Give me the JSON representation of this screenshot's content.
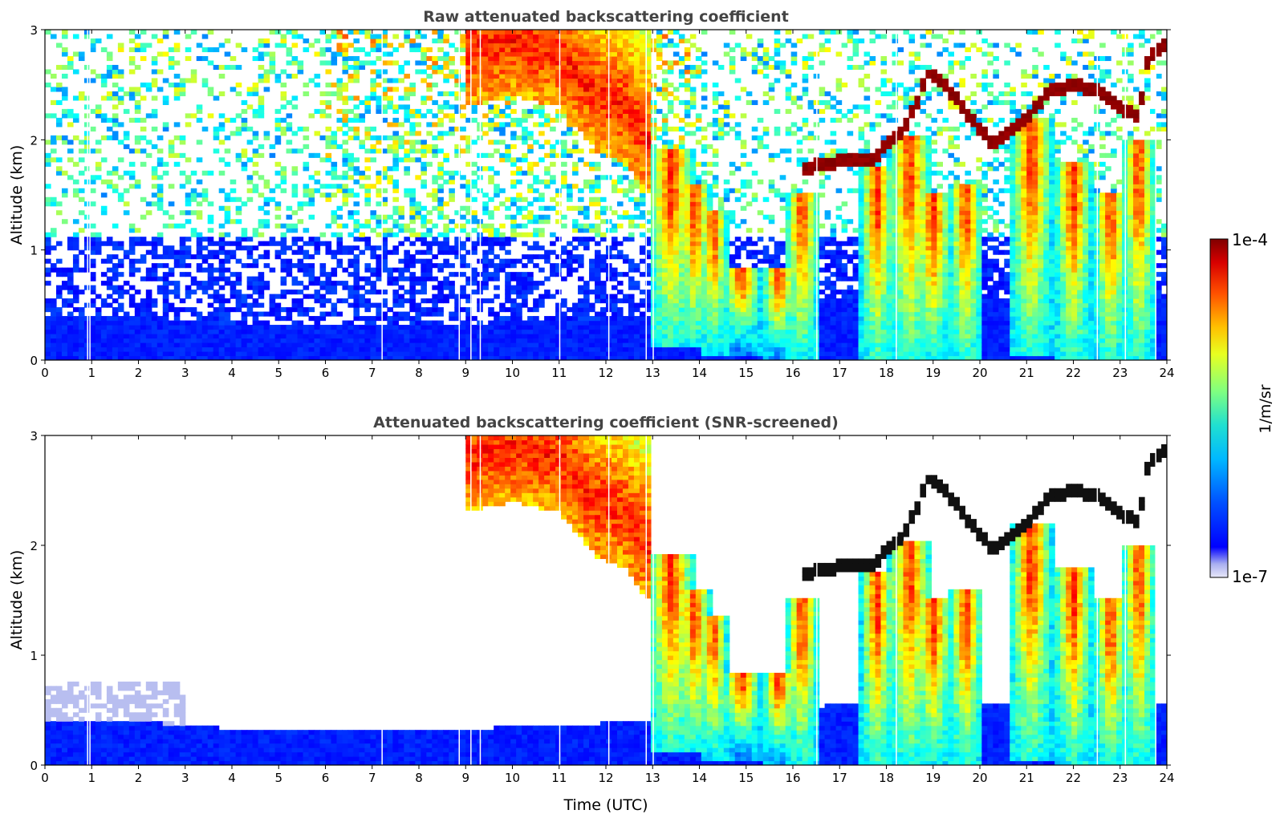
{
  "chart_data": [
    {
      "type": "heatmap",
      "panel": "top",
      "title": "Raw attenuated backscattering coefficient",
      "xlabel": "",
      "ylabel": "Altitude (km)",
      "xlim": [
        0,
        24
      ],
      "ylim": [
        0,
        3
      ],
      "xticks": [
        "0",
        "1",
        "2",
        "3",
        "4",
        "5",
        "6",
        "7",
        "8",
        "9",
        "10",
        "11",
        "12",
        "13",
        "14",
        "15",
        "16",
        "17",
        "18",
        "19",
        "20",
        "21",
        "22",
        "23",
        "24"
      ],
      "yticks": [
        "0",
        "1",
        "2",
        "3"
      ],
      "screened": false
    },
    {
      "type": "heatmap",
      "panel": "bottom",
      "title": "Attenuated backscattering coefficient (SNR-screened)",
      "xlabel": "Time (UTC)",
      "ylabel": "Altitude (km)",
      "xlim": [
        0,
        24
      ],
      "ylim": [
        0,
        3
      ],
      "xticks": [
        "0",
        "1",
        "2",
        "3",
        "4",
        "5",
        "6",
        "7",
        "8",
        "9",
        "10",
        "11",
        "12",
        "13",
        "14",
        "15",
        "16",
        "17",
        "18",
        "19",
        "20",
        "21",
        "22",
        "23",
        "24"
      ],
      "yticks": [
        "0",
        "1",
        "2",
        "3"
      ],
      "screened": true
    }
  ],
  "colorbar": {
    "label": "1/m/sr",
    "max_label": "1e-4",
    "min_label": "1e-7",
    "colormap": "jet"
  },
  "features": {
    "boundary_layer_top_km": [
      [
        0,
        0.42
      ],
      [
        2,
        0.4
      ],
      [
        4,
        0.33
      ],
      [
        6,
        0.33
      ],
      [
        8,
        0.33
      ],
      [
        9,
        0.33
      ],
      [
        13,
        0.4
      ],
      [
        17,
        0.55
      ],
      [
        21,
        0.55
      ],
      [
        24,
        0.55
      ]
    ],
    "convective_columns_hour": [
      [
        13.4,
        0.4,
        1.9,
        0.5
      ],
      [
        13.9,
        0.4,
        1.6,
        0.35
      ],
      [
        14.3,
        0.35,
        1.35,
        0.3
      ],
      [
        14.9,
        0.35,
        0.85,
        0.4
      ],
      [
        15.7,
        0.3,
        0.85,
        0.35
      ],
      [
        16.2,
        0.3,
        1.5,
        0.35
      ],
      [
        17.8,
        0.25,
        1.75,
        0.35
      ],
      [
        18.5,
        0.3,
        2.05,
        0.45
      ],
      [
        19.0,
        0.3,
        1.5,
        0.4
      ],
      [
        19.7,
        0.25,
        1.6,
        0.35
      ],
      [
        21.1,
        0.35,
        2.2,
        0.45
      ],
      [
        22.0,
        0.3,
        1.8,
        0.4
      ],
      [
        22.8,
        0.25,
        1.5,
        0.35
      ],
      [
        23.4,
        0.3,
        2.0,
        0.35
      ]
    ],
    "cloud_base_layer_hour_km": [
      [
        16.3,
        1.75
      ],
      [
        16.6,
        1.78
      ],
      [
        17.2,
        1.82
      ],
      [
        17.7,
        1.82
      ],
      [
        18.0,
        1.95
      ],
      [
        18.3,
        2.05
      ],
      [
        18.6,
        2.3
      ],
      [
        18.9,
        2.6
      ],
      [
        19.2,
        2.55
      ],
      [
        19.6,
        2.3
      ],
      [
        20.0,
        2.1
      ],
      [
        20.3,
        1.95
      ],
      [
        20.6,
        2.05
      ],
      [
        21.0,
        2.2
      ],
      [
        21.5,
        2.45
      ],
      [
        22.0,
        2.5
      ],
      [
        22.5,
        2.45
      ],
      [
        23.0,
        2.3
      ],
      [
        23.4,
        2.2
      ],
      [
        23.6,
        2.75
      ],
      [
        23.9,
        2.85
      ]
    ],
    "elevated_aerosol_hour_km": [
      [
        9.0,
        2.8
      ],
      [
        10.0,
        2.9
      ],
      [
        11.0,
        2.8
      ],
      [
        11.8,
        2.4
      ],
      [
        12.4,
        2.3
      ],
      [
        12.9,
        2.0
      ]
    ]
  }
}
